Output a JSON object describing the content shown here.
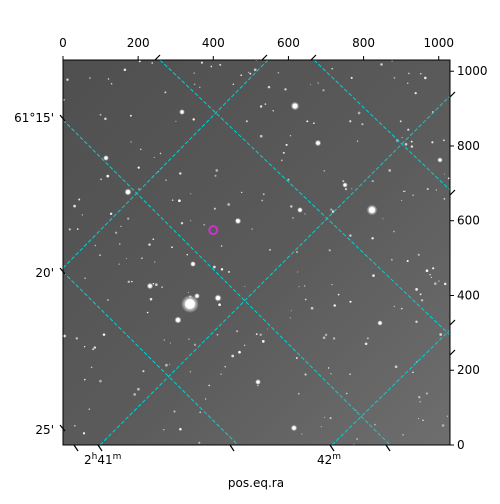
{
  "chart_data": {
    "type": "image",
    "xlabel": "pos.eq.ra",
    "pixel_axis": {
      "x_ticks": [
        0,
        200,
        400,
        600,
        800,
        1000
      ],
      "x_range": [
        0,
        1030
      ],
      "y_ticks": [
        0,
        200,
        400,
        600,
        800,
        1000
      ],
      "y_range": [
        0,
        1030
      ]
    },
    "world_axis": {
      "dec_ticks": [
        {
          "label_deg": "61°15'",
          "value_arcmin": -15
        },
        {
          "label_deg": "20'",
          "value_arcmin": -20
        },
        {
          "label_deg": "25'",
          "value_arcmin": -25
        }
      ],
      "ra_ticks": [
        {
          "label_h": "2",
          "label_sup_h": "h",
          "label_m": "41",
          "label_sup_m": "m"
        },
        {
          "label_m": "42",
          "label_sup_m": "m"
        }
      ]
    },
    "grid_color": "#00d2d2",
    "marker": {
      "x": 400,
      "y": 575,
      "color": "#cc33cc"
    },
    "background_color": "#5b5b5b"
  }
}
